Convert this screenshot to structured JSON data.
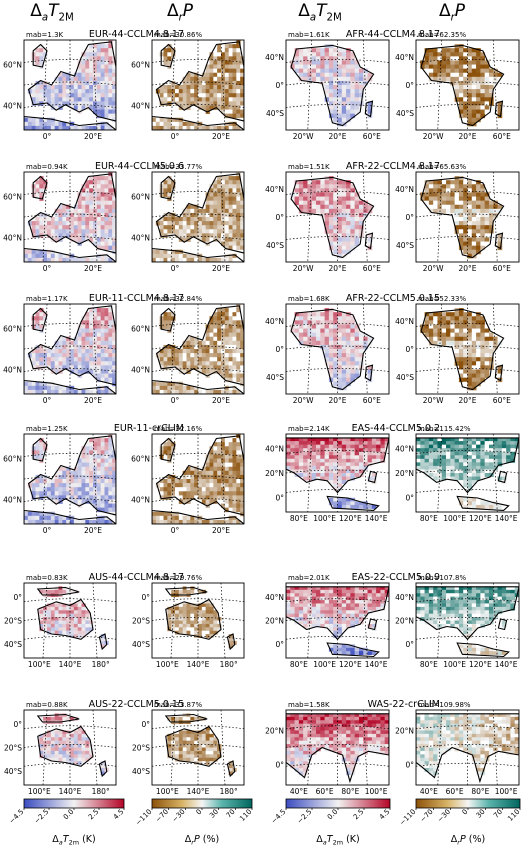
{
  "headers": [
    {
      "var": "Δ",
      "sub": "a",
      "tail": "T",
      "tsub": "2M"
    },
    {
      "var": "Δ",
      "sub": "r",
      "tail": "P",
      "tsub": ""
    },
    {
      "var": "Δ",
      "sub": "a",
      "tail": "T",
      "tsub": "2M"
    },
    {
      "var": "Δ",
      "sub": "r",
      "tail": "P",
      "tsub": ""
    }
  ],
  "colors": {
    "temp_cold": "#3b4cc0",
    "temp_mid": "#f2f2f2",
    "temp_warm": "#b40426",
    "prec_dry": "#8c510a",
    "prec_mid": "#f5f5f5",
    "prec_wet": "#01665e",
    "land_gray": "#d9d9d9"
  },
  "chart_data": [
    {
      "type": "heatmap",
      "domain": "EUR",
      "title": "EUR-44-CCLM4.8.17",
      "mab_t": "mab=1.3K",
      "mab_p": "mab=30.86%",
      "lat_ticks": [
        "60°N",
        "40°N"
      ],
      "lon_ticks": [
        "0°",
        "20°E"
      ]
    },
    {
      "type": "heatmap",
      "domain": "EUR",
      "title": "EUR-44-CCLM5.0.6",
      "mab_t": "mab=0.94K",
      "mab_p": "mab=33.77%",
      "lat_ticks": [
        "60°N",
        "40°N"
      ],
      "lon_ticks": [
        "0°",
        "20°E"
      ]
    },
    {
      "type": "heatmap",
      "domain": "EUR",
      "title": "EUR-11-CCLM4.8.17",
      "mab_t": "mab=1.17K",
      "mab_p": "mab=32.84%",
      "lat_ticks": [
        "60°N",
        "40°N"
      ],
      "lon_ticks": [
        "0°",
        "20°E"
      ]
    },
    {
      "type": "heatmap",
      "domain": "EUR",
      "title": "EUR-11-crCLIM",
      "mab_t": "mab=1.25K",
      "mab_p": "mab=32.16%",
      "lat_ticks": [
        "60°N",
        "40°N"
      ],
      "lon_ticks": [
        "0°",
        "20°E"
      ]
    },
    {
      "type": "heatmap",
      "domain": "AUS",
      "title": "AUS-44-CCLM4.8.17",
      "mab_t": "mab=0.83K",
      "mab_p": "mab=29.76%",
      "lat_ticks": [
        "0°",
        "20°S",
        "40°S"
      ],
      "lon_ticks": [
        "100°E",
        "140°E",
        "180°"
      ]
    },
    {
      "type": "heatmap",
      "domain": "AUS",
      "title": "AUS-22-CCLM5.0.15",
      "mab_t": "mab=0.88K",
      "mab_p": "mab=33.87%",
      "lat_ticks": [
        "0°",
        "20°S",
        "40°S"
      ],
      "lon_ticks": [
        "100°E",
        "140°E",
        "180°"
      ]
    },
    {
      "type": "heatmap",
      "domain": "AFR",
      "title": "AFR-44-CCLM4.8.17",
      "mab_t": "mab=1.61K",
      "mab_p": "mab=62.35%",
      "lat_ticks": [
        "40°N",
        "0°",
        "40°S"
      ],
      "lon_ticks": [
        "20°W",
        "20°E",
        "60°E"
      ]
    },
    {
      "type": "heatmap",
      "domain": "AFR",
      "title": "AFR-22-CCLM4.8.17",
      "mab_t": "mab=1.51K",
      "mab_p": "mab=65.63%",
      "lat_ticks": [
        "40°N",
        "0°",
        "40°S"
      ],
      "lon_ticks": [
        "20°W",
        "20°E",
        "60°E"
      ]
    },
    {
      "type": "heatmap",
      "domain": "AFR",
      "title": "AFR-22-CCLM5.0.15",
      "mab_t": "mab=1.68K",
      "mab_p": "mab=52.33%",
      "lat_ticks": [
        "40°N",
        "0°",
        "40°S"
      ],
      "lon_ticks": [
        "20°W",
        "20°E",
        "60°E"
      ]
    },
    {
      "type": "heatmap",
      "domain": "EAS",
      "title": "EAS-44-CCLM5.0.2",
      "mab_t": "mab=2.14K",
      "mab_p": "mab=115.42%",
      "lat_ticks": [
        "40°N",
        "20°N",
        "0°"
      ],
      "lon_ticks": [
        "80°E",
        "100°E",
        "120°E",
        "140°E"
      ]
    },
    {
      "type": "heatmap",
      "domain": "EAS",
      "title": "EAS-22-CCLM5.0.9",
      "mab_t": "mab=2.01K",
      "mab_p": "mab=107.8%",
      "lat_ticks": [
        "40°N",
        "20°N",
        "0°"
      ],
      "lon_ticks": [
        "80°E",
        "100°E",
        "120°E",
        "140°E"
      ]
    },
    {
      "type": "heatmap",
      "domain": "WAS",
      "title": "WAS-22-crCLIM",
      "mab_t": "mab=1.58K",
      "mab_p": "mab=109.98%",
      "lat_ticks": [
        "20°N",
        "0°"
      ],
      "lon_ticks": [
        "40°E",
        "60°E",
        "80°E",
        "100°E"
      ]
    }
  ],
  "colorbars": [
    {
      "kind": "temp",
      "ticks": [
        "−4.5",
        "−2.5",
        "0.0",
        "2.5",
        "4.5"
      ],
      "label": "Δ",
      "label_sub": "a",
      "label_tail": "T",
      "label_tsub": "2m",
      "unit": " (K)"
    },
    {
      "kind": "prec",
      "ticks": [
        "−110",
        "−70",
        "−30",
        "0",
        "30",
        "70",
        "110"
      ],
      "label": "Δ",
      "label_sub": "r",
      "label_tail": "P",
      "label_tsub": "",
      "unit": " (%)"
    },
    {
      "kind": "temp",
      "ticks": [
        "−4.5",
        "−2.5",
        "0.0",
        "2.5",
        "4.5"
      ],
      "label": "Δ",
      "label_sub": "a",
      "label_tail": "T",
      "label_tsub": "2m",
      "unit": " (K)"
    },
    {
      "kind": "prec",
      "ticks": [
        "−110",
        "−70",
        "−30",
        "0",
        "30",
        "70",
        "110"
      ],
      "label": "Δ",
      "label_sub": "r",
      "label_tail": "P",
      "label_tsub": "",
      "unit": " (%)"
    }
  ]
}
